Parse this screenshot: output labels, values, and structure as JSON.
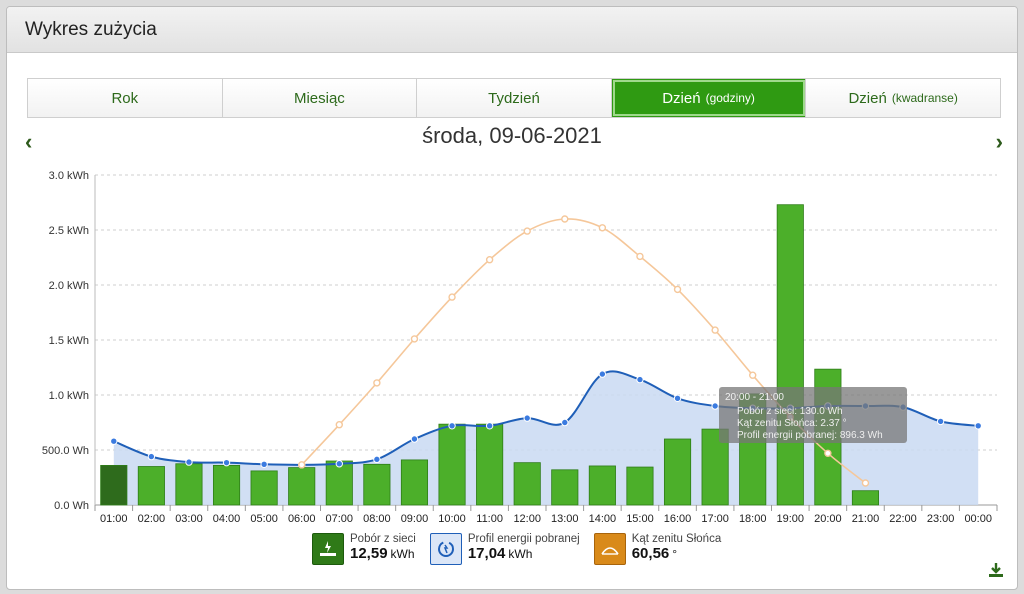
{
  "header": {
    "title": "Wykres zużycia"
  },
  "tabs": [
    {
      "label": "Rok",
      "sub": ""
    },
    {
      "label": "Miesiąc",
      "sub": ""
    },
    {
      "label": "Tydzień",
      "sub": ""
    },
    {
      "label": "Dzień",
      "sub": "(godziny)"
    },
    {
      "label": "Dzień",
      "sub": "(kwadranse)"
    }
  ],
  "active_tab": 3,
  "date_title": "środa, 09-06-2021",
  "colors": {
    "bar": "#4caf2a",
    "bar_edge": "#2e7d18",
    "bar_first": "#2e6b1c",
    "line": "#1f5fb8",
    "area": "#c9d9f2",
    "sun": "#f5c79a",
    "accent": "#2f9a12"
  },
  "chart_data": {
    "type": "bar",
    "categories": [
      "01:00",
      "02:00",
      "03:00",
      "04:00",
      "05:00",
      "06:00",
      "07:00",
      "08:00",
      "09:00",
      "10:00",
      "11:00",
      "12:00",
      "13:00",
      "14:00",
      "15:00",
      "16:00",
      "17:00",
      "18:00",
      "19:00",
      "20:00",
      "21:00",
      "22:00",
      "23:00",
      "00:00"
    ],
    "yticks": [
      "0.0 Wh",
      "500.0 Wh",
      "1.0 kWh",
      "1.5 kWh",
      "2.0 kWh",
      "2.5 kWh",
      "3.0 kWh"
    ],
    "ylim": [
      0,
      3000
    ],
    "grid": true,
    "series": [
      {
        "name": "Pobór z sieci",
        "type": "bar",
        "values": [
          360,
          350,
          375,
          360,
          310,
          340,
          400,
          370,
          410,
          735,
          735,
          385,
          320,
          355,
          345,
          600,
          690,
          1010,
          2730,
          1235,
          130,
          null,
          null,
          null
        ]
      },
      {
        "name": "Profil energii pobranej",
        "type": "area",
        "values": [
          580,
          440,
          390,
          385,
          370,
          365,
          375,
          415,
          600,
          720,
          720,
          790,
          750,
          1190,
          1140,
          970,
          900,
          880,
          880,
          900,
          900,
          890,
          760,
          720
        ]
      },
      {
        "name": "Kąt zenitu Słońca",
        "type": "line",
        "values": [
          null,
          null,
          null,
          null,
          null,
          365,
          730,
          1110,
          1510,
          1890,
          2230,
          2490,
          2600,
          2520,
          2260,
          1960,
          1590,
          1180,
          800,
          470,
          200,
          null,
          null,
          null
        ]
      }
    ],
    "tooltip": {
      "title": "20:00 - 21:00",
      "lines": [
        "Pobór z sieci: 130.0 Wh",
        "Kąt zenitu Słońca: 2.37 °",
        "Profil energii pobranej: 896.3 Wh"
      ]
    }
  },
  "legend": [
    {
      "label": "Pobór z sieci",
      "value": "12,59",
      "unit": "kWh",
      "icon": "plug-icon",
      "color": "#2f7a18"
    },
    {
      "label": "Profil energii pobranej",
      "value": "17,04",
      "unit": "kWh",
      "icon": "cycle-icon",
      "color": "#dbe6f7"
    },
    {
      "label": "Kąt zenitu Słońca",
      "value": "60,56",
      "unit": "°",
      "icon": "sun-angle-icon",
      "color": "#d98a1a"
    }
  ]
}
